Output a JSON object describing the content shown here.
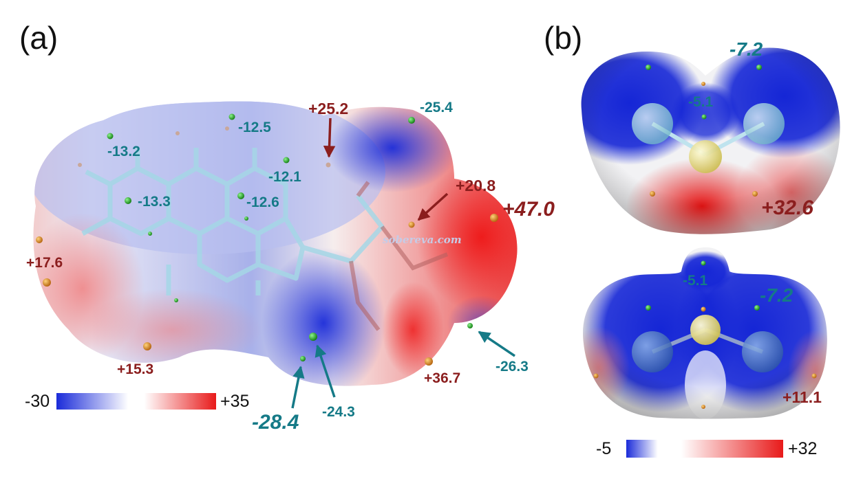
{
  "panels": {
    "a": {
      "label": "(a)",
      "values": {
        "v_m13_2": "-13.2",
        "v_m12_5": "-12.5",
        "v_p25_2": "+25.2",
        "v_m25_4": "-25.4",
        "v_m12_1": "-12.1",
        "v_m13_3": "-13.3",
        "v_m12_6": "-12.6",
        "v_p20_8": "+20.8",
        "v_p47_0": "+47.0",
        "v_p17_6": "+17.6",
        "v_p15_3": "+15.3",
        "v_m28_4": "-28.4",
        "v_m24_3": "-24.3",
        "v_p36_7": "+36.7",
        "v_m26_3": "-26.3"
      },
      "colorbar": {
        "min": "-30",
        "max": "+35"
      },
      "watermark": "sobereva.com"
    },
    "b": {
      "label": "(b)",
      "top": {
        "v1": "-7.2",
        "v2": "-5.1",
        "v3": "+32.6"
      },
      "bottom": {
        "v1": "-5.1",
        "v2": "-7.2",
        "v3": "+11.1"
      },
      "colorbar": {
        "min": "-5",
        "max": "+32"
      }
    }
  },
  "colors": {
    "negative_label": "#157a87",
    "positive_label": "#8b1e1e",
    "min_marker": "#22aa22",
    "max_marker": "#d88a1a",
    "surface_negative": "#1a2bd9",
    "surface_positive": "#e81a1a"
  }
}
